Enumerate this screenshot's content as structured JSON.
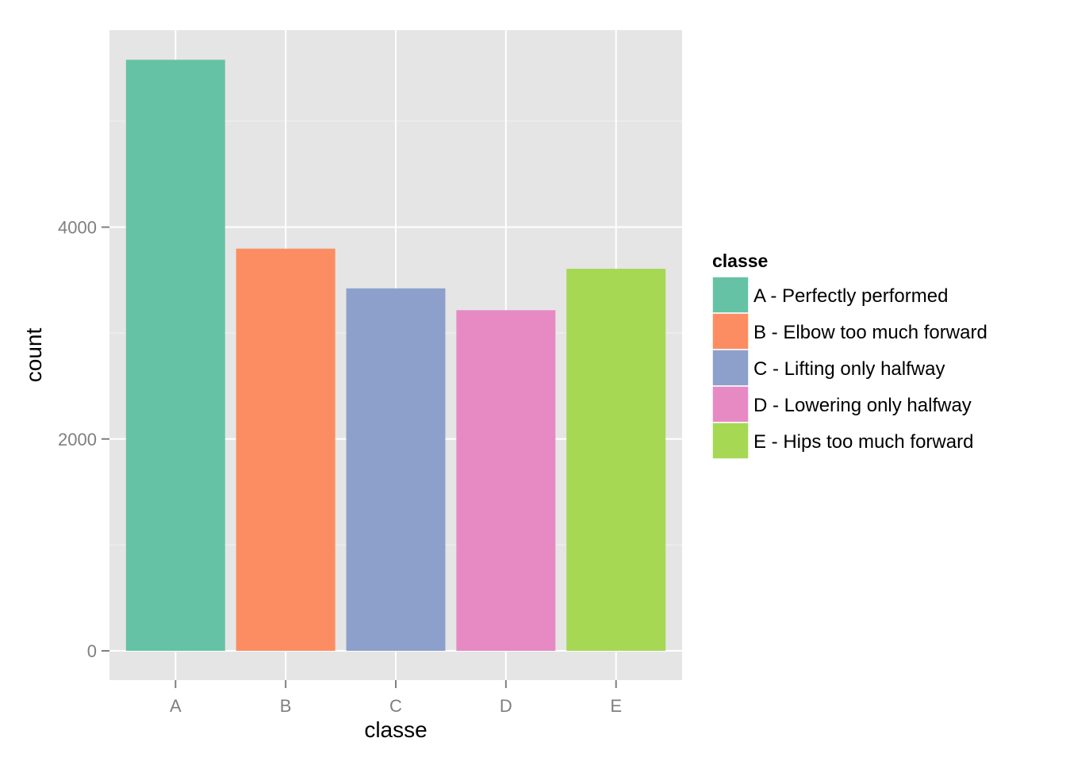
{
  "chart_data": {
    "type": "bar",
    "categories": [
      "A",
      "B",
      "C",
      "D",
      "E"
    ],
    "values": [
      5580,
      3797,
      3422,
      3216,
      3607
    ],
    "xlabel": "classe",
    "ylabel": "count",
    "ylim": [
      0,
      5860
    ],
    "yticks": [
      0,
      2000,
      4000
    ],
    "yticks_minor": [
      1000,
      3000,
      5000
    ],
    "grid": true,
    "panel_background": "#e5e5e5",
    "colors": [
      "#66c2a5",
      "#fc8d62",
      "#8da0cb",
      "#e78ac3",
      "#a6d854"
    ],
    "legend": {
      "title": "classe",
      "position": "right",
      "entries": [
        "A - Perfectly performed",
        "B - Elbow too much forward",
        "C - Lifting only halfway",
        "D - Lowering only halfway",
        "E - Hips too much forward"
      ]
    }
  }
}
